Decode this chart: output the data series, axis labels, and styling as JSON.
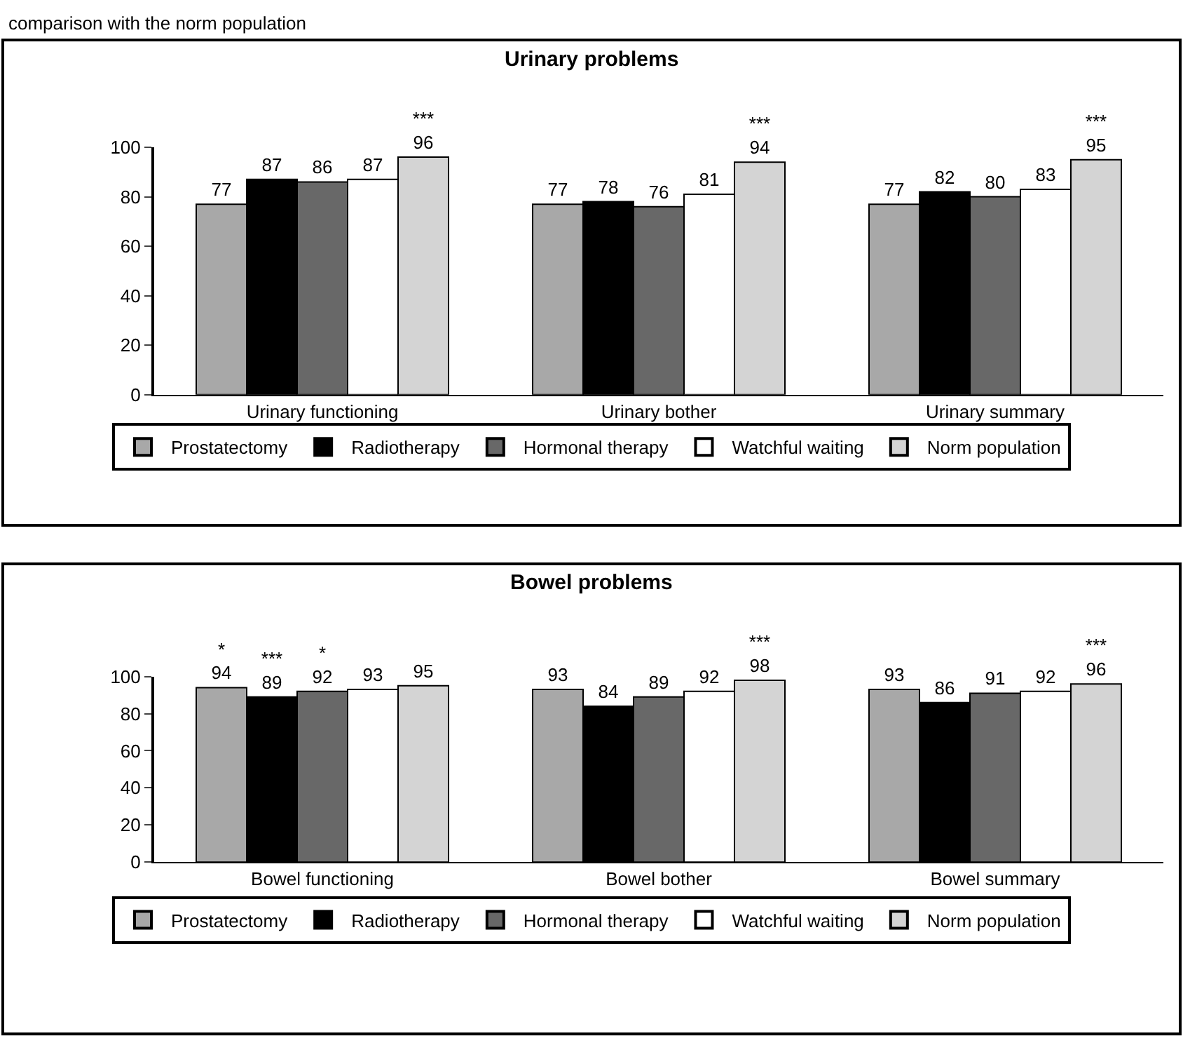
{
  "chart_data": [
    {
      "type": "bar",
      "title": "Urinary problems",
      "annotations": [
        "comparison with the norm population"
      ],
      "categories": [
        "Urinary functioning",
        "Urinary bother",
        "Urinary summary"
      ],
      "ylim": [
        0,
        100
      ],
      "yticks": [
        0,
        20,
        40,
        60,
        80,
        100
      ],
      "legend": "bottom",
      "series": [
        {
          "name": "Prostatectomy",
          "color": "#a8a8a8",
          "values": [
            77,
            77,
            77
          ],
          "value_labels": [
            "77",
            "77",
            "77"
          ]
        },
        {
          "name": "Radiotherapy",
          "color": "#000000",
          "values": [
            87,
            78,
            82
          ],
          "value_labels": [
            "87",
            "78",
            "82"
          ]
        },
        {
          "name": "Hormonal therapy",
          "color": "#686868",
          "values": [
            86,
            76,
            80
          ],
          "value_labels": [
            "86",
            "76",
            "80"
          ]
        },
        {
          "name": "Watchful waiting",
          "color": "#ffffff",
          "values": [
            87,
            81,
            83
          ],
          "value_labels": [
            "87",
            "81",
            "83"
          ]
        },
        {
          "name": "Norm population",
          "color": "#d4d4d4",
          "values": [
            96,
            94,
            95
          ],
          "value_labels": [
            "***\n96",
            "***\n94",
            "***\n95"
          ]
        }
      ]
    },
    {
      "type": "bar",
      "title": "Bowel problems",
      "categories": [
        "Bowel functioning",
        "Bowel bother",
        "Bowel summary"
      ],
      "ylim": [
        0,
        100
      ],
      "yticks": [
        0,
        20,
        40,
        60,
        80,
        100
      ],
      "legend": "bottom",
      "series": [
        {
          "name": "Prostatectomy",
          "color": "#a8a8a8",
          "values": [
            94,
            93,
            93
          ],
          "value_labels": [
            "*\n94",
            "93",
            "93"
          ]
        },
        {
          "name": "Radiotherapy",
          "color": "#000000",
          "values": [
            89,
            84,
            86
          ],
          "value_labels": [
            "***\n89",
            "84",
            "86"
          ]
        },
        {
          "name": "Hormonal therapy",
          "color": "#686868",
          "values": [
            92,
            89,
            91
          ],
          "value_labels": [
            "*\n92",
            "89",
            "91"
          ]
        },
        {
          "name": "Watchful waiting",
          "color": "#ffffff",
          "values": [
            93,
            92,
            92
          ],
          "value_labels": [
            "93",
            "92",
            "92"
          ]
        },
        {
          "name": "Norm population",
          "color": "#d4d4d4",
          "values": [
            95,
            98,
            96
          ],
          "value_labels": [
            "95",
            "***\n98",
            "***\n96"
          ]
        }
      ]
    }
  ]
}
